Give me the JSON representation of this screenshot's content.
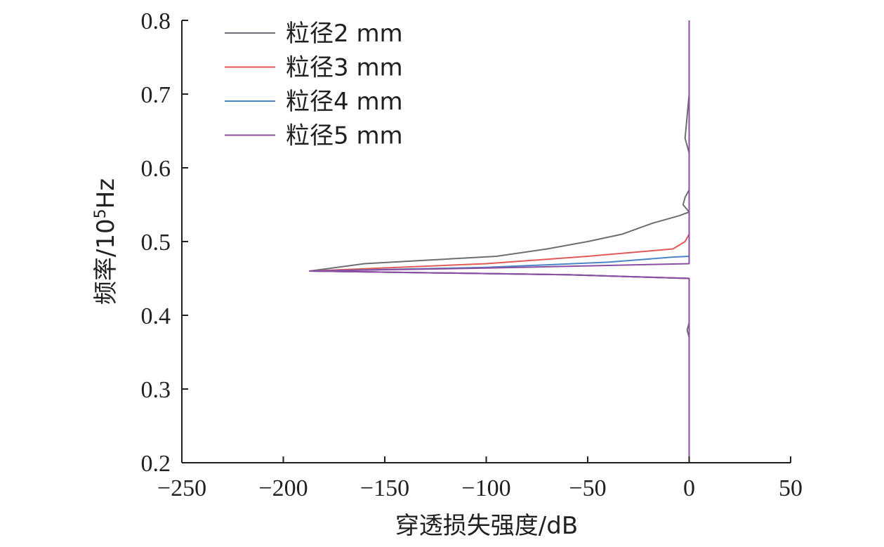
{
  "chart_data": {
    "type": "line",
    "title": "",
    "xlabel": "穿透损失强度/dB",
    "ylabel_prefix": "频率/10",
    "ylabel_sup": "5",
    "ylabel_suffix": "Hz",
    "xlim": [
      -250,
      50
    ],
    "ylim": [
      0.2,
      0.8
    ],
    "x_ticks": [
      -250,
      -200,
      -150,
      -100,
      -50,
      0,
      50
    ],
    "x_tick_labels": [
      "−250",
      "−200",
      "−150",
      "−100",
      "−50",
      "0",
      "50"
    ],
    "y_ticks": [
      0.2,
      0.3,
      0.4,
      0.5,
      0.6,
      0.7,
      0.8
    ],
    "y_tick_labels": [
      "0.2",
      "0.3",
      "0.4",
      "0.5",
      "0.6",
      "0.7",
      "0.8"
    ],
    "grid": false,
    "legend_position": "top-left",
    "series": [
      {
        "name": "粒径2 mm",
        "color": "#6d6e71",
        "points": [
          [
            0,
            0.2
          ],
          [
            0,
            0.37
          ],
          [
            -1,
            0.38
          ],
          [
            0,
            0.39
          ],
          [
            0,
            0.45
          ],
          [
            -60,
            0.455
          ],
          [
            -187,
            0.46
          ],
          [
            -160,
            0.47
          ],
          [
            -95,
            0.48
          ],
          [
            -70,
            0.49
          ],
          [
            -50,
            0.5
          ],
          [
            -33,
            0.51
          ],
          [
            -18,
            0.525
          ],
          [
            -5,
            0.535
          ],
          [
            0,
            0.54
          ],
          [
            -3,
            0.55
          ],
          [
            -2,
            0.56
          ],
          [
            0,
            0.57
          ],
          [
            0,
            0.62
          ],
          [
            -2,
            0.64
          ],
          [
            -1,
            0.67
          ],
          [
            0,
            0.7
          ],
          [
            0,
            0.8
          ]
        ]
      },
      {
        "name": "粒径3 mm",
        "color": "#e05a5a",
        "points": [
          [
            0,
            0.2
          ],
          [
            0,
            0.45
          ],
          [
            -60,
            0.455
          ],
          [
            -187,
            0.46
          ],
          [
            -100,
            0.47
          ],
          [
            -50,
            0.48
          ],
          [
            -8,
            0.49
          ],
          [
            -2,
            0.5
          ],
          [
            0,
            0.51
          ],
          [
            0,
            0.8
          ]
        ]
      },
      {
        "name": "粒径4 mm",
        "color": "#4a86c5",
        "points": [
          [
            0,
            0.2
          ],
          [
            0,
            0.45
          ],
          [
            -60,
            0.455
          ],
          [
            -187,
            0.46
          ],
          [
            -100,
            0.465
          ],
          [
            -40,
            0.472
          ],
          [
            -8,
            0.479
          ],
          [
            0,
            0.48
          ],
          [
            0,
            0.8
          ]
        ]
      },
      {
        "name": "粒径5 mm",
        "color": "#8a4fa3",
        "points": [
          [
            0,
            0.2
          ],
          [
            0,
            0.45
          ],
          [
            -60,
            0.455
          ],
          [
            -187,
            0.46
          ],
          [
            -100,
            0.464
          ],
          [
            0,
            0.47
          ],
          [
            0,
            0.8
          ]
        ]
      }
    ]
  }
}
